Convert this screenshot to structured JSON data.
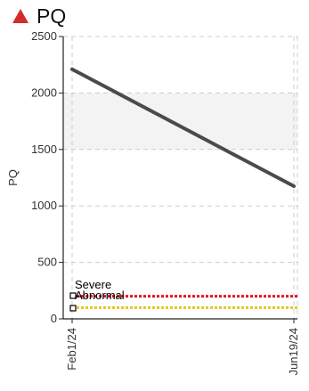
{
  "header": {
    "title": "PQ",
    "status_icon": "red-up-triangle-icon"
  },
  "colors": {
    "status": "#d42b2b",
    "line": "#4a4a4a",
    "severe": "#e8131f",
    "abnormal": "#e8c61b",
    "band": "#f3f3f3",
    "grid": "#cccccc"
  },
  "chart_data": {
    "type": "line",
    "title": "",
    "xlabel": "",
    "ylabel": "PQ",
    "x": [
      "Feb1/24",
      "Jun19/24"
    ],
    "ylim": [
      0,
      2500
    ],
    "yticks": [
      "0",
      "500",
      "1000",
      "1500",
      "2000",
      "2500"
    ],
    "grid": true,
    "series": [
      {
        "values": [
          2210,
          1175
        ]
      }
    ],
    "thresholds": [
      {
        "name": "Severe",
        "value": 200
      },
      {
        "name": "Abnormal",
        "value": 100
      }
    ],
    "normal_band": [
      1500,
      2000
    ],
    "legend_placement": "bottom-left"
  }
}
